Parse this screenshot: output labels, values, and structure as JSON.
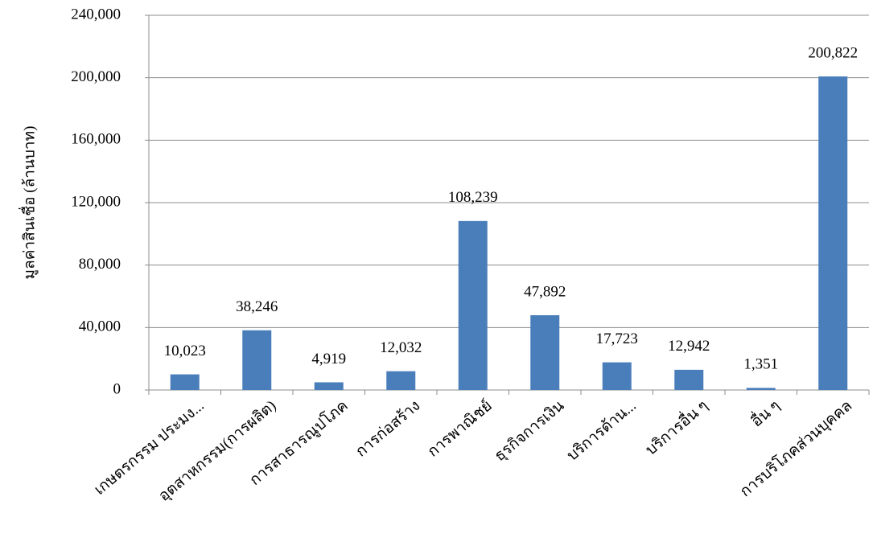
{
  "chart_data": {
    "type": "bar",
    "y_label": "มูลค่าสินเชื่อ (ล้านบาท)",
    "categories": [
      "เกษตรกรรม ประมง...",
      "อุตสาหกรรม(การผลิต)",
      "การสาธารณูปโภค",
      "การก่อสร้าง",
      "การพาณิชย์",
      "ธุรกิจการเงิน",
      "บริการด้าน...",
      "บริการอื่น ๆ",
      "อื่น ๆ",
      "การบริโภคส่วนบุคคล"
    ],
    "values": [
      10023,
      38246,
      4919,
      12032,
      108239,
      47892,
      17723,
      12942,
      1351,
      200822
    ],
    "value_labels": [
      "10,023",
      "38,246",
      "4,919",
      "12,032",
      "108,239",
      "47,892",
      "17,723",
      "12,942",
      "1,351",
      "200,822"
    ],
    "color": "#4a7ebb",
    "ylim": [
      0,
      240000
    ],
    "yticks": [
      0,
      {
        "value": 40000,
        "label": "40,000"
      },
      {
        "value": 80000,
        "label": "80,000"
      },
      {
        "value": 120000,
        "label": "120,000"
      },
      {
        "value": 160000,
        "label": "160,000"
      },
      {
        "value": 200000,
        "label": "200,000"
      },
      {
        "value": 240000,
        "label": "240,000"
      }
    ],
    "grid": true
  }
}
